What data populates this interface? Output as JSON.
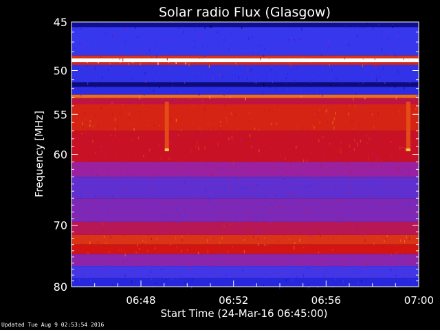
{
  "chart_data": {
    "type": "heatmap",
    "title": "Solar radio Flux (Glasgow)",
    "xlabel": "Start Time (24-Mar-16 06:45:00)",
    "ylabel": "Frequency [MHz]",
    "x_range_minutes": [
      0,
      15
    ],
    "x_ticks": [
      {
        "minute": 3,
        "label": "06:48"
      },
      {
        "minute": 7,
        "label": "06:52"
      },
      {
        "minute": 11,
        "label": "06:56"
      },
      {
        "minute": 15,
        "label": "07:00"
      }
    ],
    "y_range_mhz": [
      45,
      80
    ],
    "y_scale": "log",
    "y_ticks": [
      {
        "value": 45,
        "label": "45"
      },
      {
        "value": 50,
        "label": "50"
      },
      {
        "value": 55,
        "label": "55"
      },
      {
        "value": 60,
        "label": "60"
      },
      {
        "value": 70,
        "label": "70"
      },
      {
        "value": 80,
        "label": "80"
      }
    ],
    "colormap": [
      "#000014",
      "#1414c8",
      "#3838f0",
      "#a0209a",
      "#d00e12",
      "#f07a1a",
      "#ffd84a",
      "#ffffff"
    ],
    "intensity_bands": [
      {
        "f_from": 45.0,
        "f_to": 45.5,
        "level": 0.1
      },
      {
        "f_from": 45.5,
        "f_to": 48.4,
        "level": 0.28
      },
      {
        "f_from": 48.4,
        "f_to": 48.7,
        "level": 0.62
      },
      {
        "f_from": 48.7,
        "f_to": 49.1,
        "level": 1.0
      },
      {
        "f_from": 49.1,
        "f_to": 49.4,
        "level": 0.6
      },
      {
        "f_from": 49.4,
        "f_to": 51.3,
        "level": 0.26
      },
      {
        "f_from": 51.3,
        "f_to": 51.8,
        "level": 0.08
      },
      {
        "f_from": 51.8,
        "f_to": 52.7,
        "level": 0.24
      },
      {
        "f_from": 52.7,
        "f_to": 53.1,
        "level": 0.7
      },
      {
        "f_from": 53.1,
        "f_to": 53.8,
        "level": 0.52
      },
      {
        "f_from": 53.8,
        "f_to": 57.0,
        "level": 0.6
      },
      {
        "f_from": 57.0,
        "f_to": 61.0,
        "level": 0.55
      },
      {
        "f_from": 61.0,
        "f_to": 63.0,
        "level": 0.42
      },
      {
        "f_from": 63.0,
        "f_to": 66.0,
        "level": 0.34
      },
      {
        "f_from": 66.0,
        "f_to": 69.5,
        "level": 0.38
      },
      {
        "f_from": 69.5,
        "f_to": 71.5,
        "level": 0.5
      },
      {
        "f_from": 71.5,
        "f_to": 73.0,
        "level": 0.62
      },
      {
        "f_from": 73.0,
        "f_to": 74.5,
        "level": 0.58
      },
      {
        "f_from": 74.5,
        "f_to": 76.5,
        "level": 0.4
      },
      {
        "f_from": 76.5,
        "f_to": 78.5,
        "level": 0.3
      },
      {
        "f_from": 78.5,
        "f_to": 80.0,
        "level": 0.22
      }
    ],
    "vertical_bursts": [
      {
        "minute": 4.12,
        "f_from": 53.5,
        "f_to": 59.5,
        "level": 0.66
      },
      {
        "minute": 14.55,
        "f_from": 53.5,
        "f_to": 59.5,
        "level": 0.66
      }
    ],
    "grid": false,
    "legend": "none"
  },
  "footer": {
    "updated": "Updated Tue Aug  9 02:53:54 2016"
  }
}
